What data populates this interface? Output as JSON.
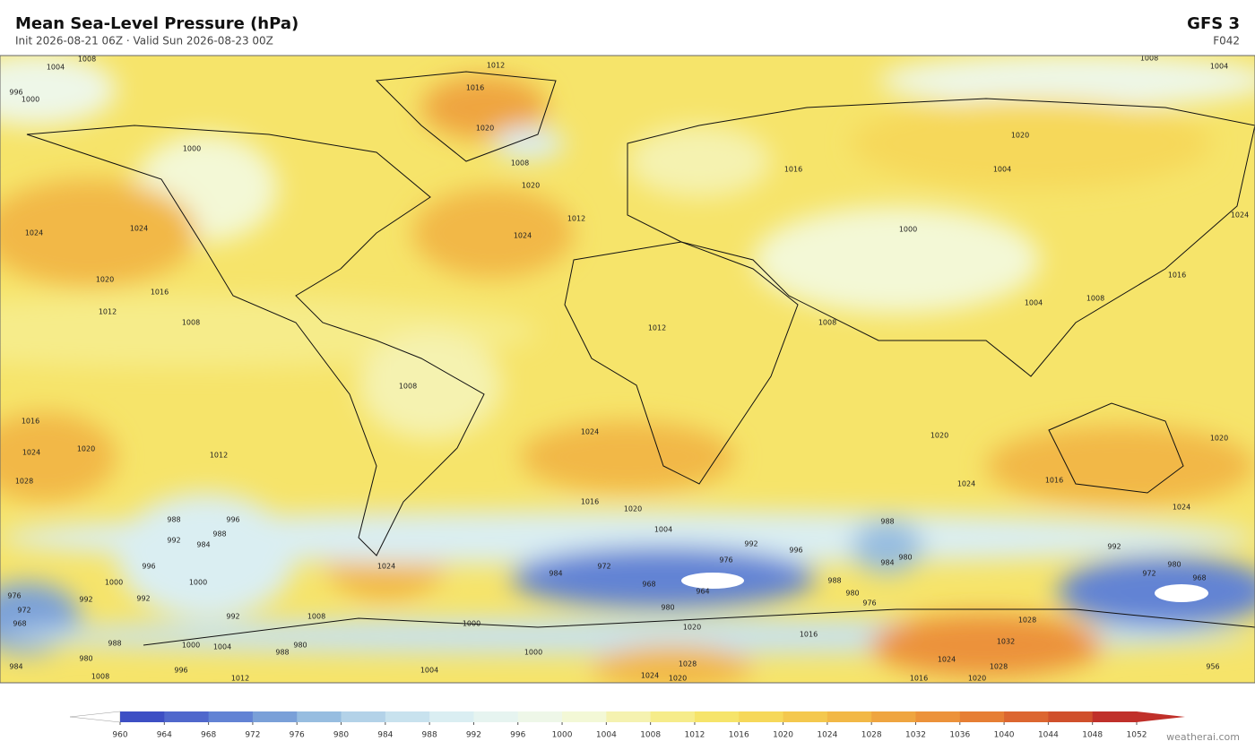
{
  "header": {
    "title": "Mean Sea-Level Pressure  (hPa)",
    "subtitle": "Init 2026-08-21 06Z  ·  Valid Sun 2026-08-23 00Z",
    "model": "GFS  3",
    "forecast": "F042"
  },
  "contour_labels": [
    1004,
    1008,
    1012,
    1008,
    1004,
    1000,
    996,
    1016,
    1020,
    1008,
    1000,
    1024,
    1024,
    1020,
    1016,
    1012,
    1008,
    1020,
    1024,
    1012,
    1016,
    1020,
    1004,
    1000,
    1016,
    1004,
    1008,
    1008,
    1012,
    1008,
    1016,
    1024,
    1020,
    1012,
    1028,
    1024,
    1020,
    1024,
    1016,
    1020,
    1024,
    1016,
    1020,
    1004,
    992,
    996,
    988,
    996,
    988,
    992,
    984,
    996,
    1000,
    1000,
    992,
    992,
    976,
    972,
    968,
    988,
    984,
    980,
    988,
    980,
    976,
    984,
    972,
    968,
    964,
    976,
    980,
    992,
    980,
    972,
    968,
    1008,
    1000,
    992,
    1000,
    1004,
    988,
    980,
    988,
    980,
    984,
    1020,
    1016,
    1028,
    1032,
    1024,
    1028,
    1028,
    1024,
    1020,
    1004,
    1000,
    996,
    1008,
    1012,
    1016,
    1020,
    956,
    1024,
    1024
  ],
  "colorbar": {
    "ticks": [
      960,
      964,
      968,
      972,
      976,
      980,
      984,
      988,
      992,
      996,
      1000,
      1004,
      1008,
      1012,
      1016,
      1020,
      1024,
      1028,
      1032,
      1036,
      1040,
      1044,
      1048,
      1052
    ],
    "colors": [
      "#3d4fc4",
      "#5068cc",
      "#6283d4",
      "#7aa0d8",
      "#97bde0",
      "#b3d2e8",
      "#c8e2ee",
      "#daeef2",
      "#e6f4f0",
      "#eef7e8",
      "#f3f8d6",
      "#f5f2b0",
      "#f6ec8a",
      "#f6e46a",
      "#f6d85a",
      "#f4c84e",
      "#f2b846",
      "#efa540",
      "#ec923a",
      "#e67e34",
      "#dc6630",
      "#d0502c",
      "#c0302a"
    ],
    "under_color": "#ffffff",
    "over_color": "#c0302a"
  },
  "watermark": "weatherai.com"
}
